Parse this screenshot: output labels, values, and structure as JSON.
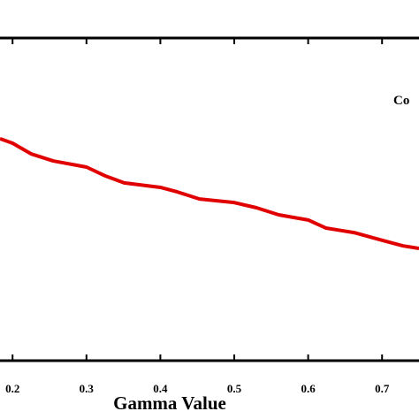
{
  "chart_data": {
    "type": "line",
    "x_label": "Gamma Value",
    "xlim": [
      0.183,
      0.75
    ],
    "xticks": [
      0.2,
      0.3,
      0.4,
      0.5,
      0.6,
      0.7
    ],
    "ylim": [
      0,
      1
    ],
    "series": [
      {
        "name": "Co",
        "color": "#e00000",
        "x": [
          0.183,
          0.2,
          0.225,
          0.255,
          0.3,
          0.325,
          0.351,
          0.4,
          0.423,
          0.453,
          0.5,
          0.53,
          0.56,
          0.6,
          0.624,
          0.662,
          0.7,
          0.728,
          0.75
        ],
        "values": [
          0.688,
          0.674,
          0.641,
          0.619,
          0.6,
          0.573,
          0.551,
          0.537,
          0.523,
          0.501,
          0.49,
          0.474,
          0.452,
          0.436,
          0.411,
          0.397,
          0.373,
          0.356,
          0.348
        ]
      }
    ]
  }
}
